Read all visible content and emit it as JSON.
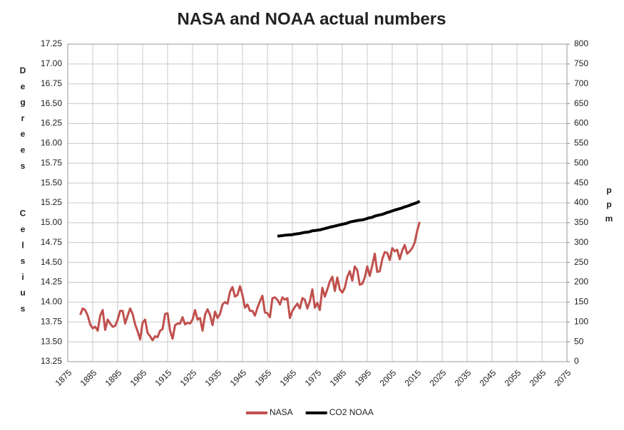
{
  "chart_data": {
    "type": "line",
    "title": "NASA and NOAA actual numbers",
    "y_label": "Degrees Celsius",
    "y2_label": "ppm",
    "grid": true,
    "legend": "bottom",
    "xlim": [
      1875,
      2075
    ],
    "xticks": [
      1875,
      1885,
      1895,
      1905,
      1915,
      1925,
      1935,
      1945,
      1955,
      1965,
      1975,
      1985,
      1995,
      2005,
      2015,
      2025,
      2035,
      2045,
      2055,
      2065,
      2075
    ],
    "ylim": [
      13.25,
      17.25
    ],
    "yticks": [
      {
        "value": 13.25,
        "label": "13.25"
      },
      {
        "value": 13.5,
        "label": "13.50"
      },
      {
        "value": 13.75,
        "label": "13.75"
      },
      {
        "value": 14,
        "label": "14.00"
      },
      {
        "value": 14.25,
        "label": "14.25"
      },
      {
        "value": 14.5,
        "label": "14.50"
      },
      {
        "value": 14.75,
        "label": "14.75"
      },
      {
        "value": 15,
        "label": "15.00"
      },
      {
        "value": 15.25,
        "label": "15.25"
      },
      {
        "value": 15.5,
        "label": "15.50"
      },
      {
        "value": 15.75,
        "label": "15.75"
      },
      {
        "value": 16,
        "label": "16.00"
      },
      {
        "value": 16.25,
        "label": "16.25"
      },
      {
        "value": 16.5,
        "label": "16.50"
      },
      {
        "value": 16.75,
        "label": "16.75"
      },
      {
        "value": 17,
        "label": "17.00"
      },
      {
        "value": 17.25,
        "label": "17.25"
      }
    ],
    "y2lim": [
      0,
      800
    ],
    "y2ticks": [
      0,
      50,
      100,
      150,
      200,
      250,
      300,
      350,
      400,
      450,
      500,
      550,
      600,
      650,
      700,
      750,
      800
    ],
    "x": [
      1880,
      1881,
      1882,
      1883,
      1884,
      1885,
      1886,
      1887,
      1888,
      1889,
      1890,
      1891,
      1892,
      1893,
      1894,
      1895,
      1896,
      1897,
      1898,
      1899,
      1900,
      1901,
      1902,
      1903,
      1904,
      1905,
      1906,
      1907,
      1908,
      1909,
      1910,
      1911,
      1912,
      1913,
      1914,
      1915,
      1916,
      1917,
      1918,
      1919,
      1920,
      1921,
      1922,
      1923,
      1924,
      1925,
      1926,
      1927,
      1928,
      1929,
      1930,
      1931,
      1932,
      1933,
      1934,
      1935,
      1936,
      1937,
      1938,
      1939,
      1940,
      1941,
      1942,
      1943,
      1944,
      1945,
      1946,
      1947,
      1948,
      1949,
      1950,
      1951,
      1952,
      1953,
      1954,
      1955,
      1956,
      1957,
      1958,
      1959,
      1960,
      1961,
      1962,
      1963,
      1964,
      1965,
      1966,
      1967,
      1968,
      1969,
      1970,
      1971,
      1972,
      1973,
      1974,
      1975,
      1976,
      1977,
      1978,
      1979,
      1980,
      1981,
      1982,
      1983,
      1984,
      1985,
      1986,
      1987,
      1988,
      1989,
      1990,
      1991,
      1992,
      1993,
      1994,
      1995,
      1996,
      1997,
      1998,
      1999,
      2000,
      2001,
      2002,
      2003,
      2004,
      2005,
      2006,
      2007,
      2008,
      2009,
      2010,
      2011,
      2012,
      2013,
      2014,
      2015,
      2016
    ],
    "series": [
      {
        "name": "NASA",
        "color": "#c0504d",
        "axis": "y",
        "values": [
          13.84,
          13.92,
          13.9,
          13.83,
          13.72,
          13.67,
          13.69,
          13.64,
          13.83,
          13.9,
          13.65,
          13.78,
          13.73,
          13.69,
          13.7,
          13.78,
          13.89,
          13.89,
          13.73,
          13.83,
          13.92,
          13.85,
          13.72,
          13.63,
          13.53,
          13.74,
          13.78,
          13.61,
          13.57,
          13.52,
          13.57,
          13.56,
          13.64,
          13.66,
          13.85,
          13.86,
          13.64,
          13.54,
          13.71,
          13.73,
          13.73,
          13.81,
          13.72,
          13.74,
          13.73,
          13.78,
          13.9,
          13.78,
          13.8,
          13.64,
          13.84,
          13.91,
          13.84,
          13.71,
          13.88,
          13.8,
          13.85,
          13.97,
          14.0,
          13.98,
          14.13,
          14.19,
          14.07,
          14.09,
          14.2,
          14.09,
          13.93,
          13.97,
          13.89,
          13.89,
          13.83,
          13.93,
          14.01,
          14.08,
          13.87,
          13.86,
          13.81,
          14.05,
          14.06,
          14.03,
          13.97,
          14.06,
          14.03,
          14.05,
          13.8,
          13.89,
          13.94,
          13.98,
          13.92,
          14.05,
          14.03,
          13.92,
          14.01,
          14.16,
          13.93,
          13.99,
          13.9,
          14.18,
          14.07,
          14.16,
          14.26,
          14.32,
          14.14,
          14.31,
          14.16,
          14.12,
          14.18,
          14.32,
          14.39,
          14.27,
          14.45,
          14.4,
          14.22,
          14.23,
          14.31,
          14.45,
          14.33,
          14.46,
          14.61,
          14.38,
          14.39,
          14.54,
          14.63,
          14.62,
          14.53,
          14.68,
          14.64,
          14.66,
          14.54,
          14.65,
          14.72,
          14.61,
          14.64,
          14.68,
          14.75,
          14.9,
          15.01
        ]
      },
      {
        "name": "CO2 NOAA",
        "color": "#000000",
        "axis": "y2",
        "values": [
          null,
          null,
          null,
          null,
          null,
          null,
          null,
          null,
          null,
          null,
          null,
          null,
          null,
          null,
          null,
          null,
          null,
          null,
          null,
          null,
          null,
          null,
          null,
          null,
          null,
          null,
          null,
          null,
          null,
          null,
          null,
          null,
          null,
          null,
          null,
          null,
          null,
          null,
          null,
          null,
          null,
          null,
          null,
          null,
          null,
          null,
          null,
          null,
          null,
          null,
          null,
          null,
          null,
          null,
          null,
          null,
          null,
          null,
          null,
          null,
          null,
          null,
          null,
          null,
          null,
          null,
          null,
          null,
          null,
          null,
          null,
          null,
          null,
          null,
          null,
          null,
          null,
          null,
          null,
          316.0,
          316.9,
          317.6,
          318.5,
          319.0,
          319.6,
          320.0,
          321.4,
          322.2,
          323.0,
          324.6,
          325.7,
          326.3,
          327.5,
          329.7,
          330.2,
          331.1,
          332.0,
          333.8,
          335.4,
          336.8,
          338.8,
          340.1,
          341.5,
          343.1,
          344.7,
          346.1,
          347.4,
          349.2,
          351.6,
          353.1,
          354.4,
          355.6,
          356.5,
          357.1,
          358.8,
          360.8,
          362.6,
          363.7,
          366.7,
          368.4,
          369.6,
          371.1,
          373.3,
          375.8,
          377.5,
          379.8,
          381.9,
          383.8,
          385.6,
          387.4,
          389.9,
          391.7,
          393.9,
          396.5,
          398.7,
          400.8,
          404.2
        ]
      }
    ]
  }
}
